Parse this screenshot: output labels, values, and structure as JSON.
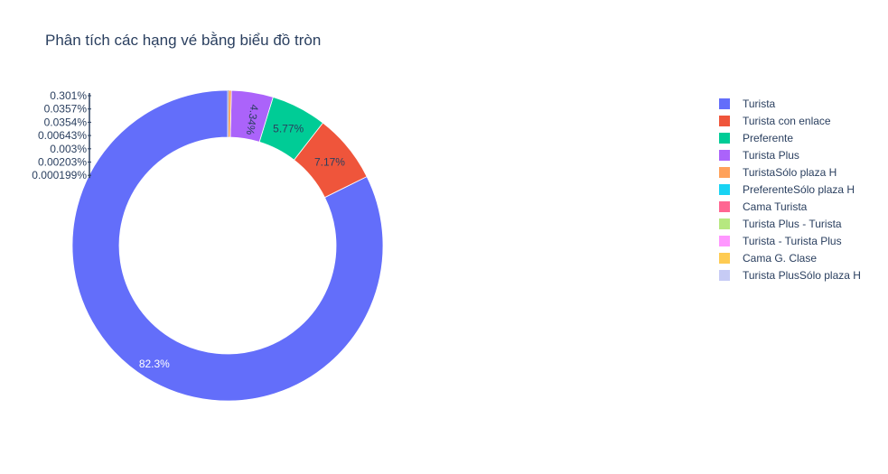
{
  "chart_data": {
    "type": "pie",
    "hole": true,
    "title": "Phân tích các hạng vé bằng biểu đồ tròn",
    "legend_position": "right",
    "slices": [
      {
        "label": "Turista",
        "percent_label": "82.3%",
        "value": 82.3,
        "color": "#636efa"
      },
      {
        "label": "Turista con enlace",
        "percent_label": "7.17%",
        "value": 7.17,
        "color": "#EF553B"
      },
      {
        "label": "Preferente",
        "percent_label": "5.77%",
        "value": 5.77,
        "color": "#00cc96"
      },
      {
        "label": "Turista Plus",
        "percent_label": "4.34%",
        "value": 4.34,
        "color": "#ab63fa"
      },
      {
        "label": "TuristaSólo plaza H",
        "percent_label": "0.301%",
        "value": 0.301,
        "color": "#FFA15A"
      },
      {
        "label": "PreferenteSólo plaza H",
        "percent_label": "0.0357%",
        "value": 0.0357,
        "color": "#19d3f3"
      },
      {
        "label": "Cama Turista",
        "percent_label": "0.0354%",
        "value": 0.0354,
        "color": "#FF6692"
      },
      {
        "label": "Turista Plus - Turista",
        "percent_label": "0.00643%",
        "value": 0.00643,
        "color": "#B6E880"
      },
      {
        "label": "Turista - Turista Plus",
        "percent_label": "0.003%",
        "value": 0.003,
        "color": "#FF97FF"
      },
      {
        "label": "Cama G. Clase",
        "percent_label": "0.00203%",
        "value": 0.00203,
        "color": "#FECB52"
      },
      {
        "label": "Turista PlusSólo plaza H",
        "percent_label": "0.000199%",
        "value": 0.000199,
        "color": "#c6cbf5"
      }
    ]
  }
}
